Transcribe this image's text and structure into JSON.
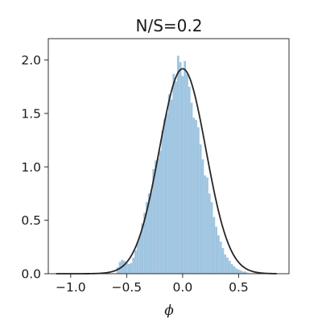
{
  "chart_data": {
    "type": "bar",
    "title": "N/S=0.2",
    "xlabel": "ϕ",
    "ylabel": "",
    "xlim": [
      -1.2,
      0.95
    ],
    "ylim": [
      0,
      2.2
    ],
    "x_ticks": [
      -1.0,
      -0.5,
      0.0,
      0.5
    ],
    "x_tick_labels": [
      "−1.0",
      "−0.5",
      "0.0",
      "0.5"
    ],
    "y_ticks": [
      0.0,
      0.5,
      1.0,
      1.5,
      2.0
    ],
    "y_tick_labels": [
      "0.0",
      "0.5",
      "1.0",
      "1.5",
      "2.0"
    ],
    "grid": false,
    "histogram": {
      "bin_width": 0.02,
      "color": "#9fc5e1",
      "bins": [
        {
          "x": -0.58,
          "y": 0.06
        },
        {
          "x": -0.56,
          "y": 0.11
        },
        {
          "x": -0.54,
          "y": 0.13
        },
        {
          "x": -0.52,
          "y": 0.12
        },
        {
          "x": -0.5,
          "y": 0.1
        },
        {
          "x": -0.48,
          "y": 0.09
        },
        {
          "x": -0.46,
          "y": 0.1
        },
        {
          "x": -0.44,
          "y": 0.15
        },
        {
          "x": -0.42,
          "y": 0.22
        },
        {
          "x": -0.4,
          "y": 0.3
        },
        {
          "x": -0.38,
          "y": 0.36
        },
        {
          "x": -0.36,
          "y": 0.47
        },
        {
          "x": -0.34,
          "y": 0.57
        },
        {
          "x": -0.32,
          "y": 0.67
        },
        {
          "x": -0.3,
          "y": 0.75
        },
        {
          "x": -0.28,
          "y": 0.77
        },
        {
          "x": -0.26,
          "y": 0.98
        },
        {
          "x": -0.24,
          "y": 1.06
        },
        {
          "x": -0.22,
          "y": 1.08
        },
        {
          "x": -0.2,
          "y": 1.15
        },
        {
          "x": -0.18,
          "y": 1.34
        },
        {
          "x": -0.16,
          "y": 1.45
        },
        {
          "x": -0.14,
          "y": 1.5
        },
        {
          "x": -0.12,
          "y": 1.68
        },
        {
          "x": -0.1,
          "y": 1.63
        },
        {
          "x": -0.08,
          "y": 1.87
        },
        {
          "x": -0.06,
          "y": 1.8
        },
        {
          "x": -0.04,
          "y": 2.04
        },
        {
          "x": -0.02,
          "y": 1.98
        },
        {
          "x": 0.0,
          "y": 1.85
        },
        {
          "x": 0.02,
          "y": 1.99
        },
        {
          "x": 0.04,
          "y": 1.87
        },
        {
          "x": 0.06,
          "y": 1.75
        },
        {
          "x": 0.08,
          "y": 1.6
        },
        {
          "x": 0.1,
          "y": 1.46
        },
        {
          "x": 0.12,
          "y": 1.44
        },
        {
          "x": 0.14,
          "y": 1.37
        },
        {
          "x": 0.16,
          "y": 1.21
        },
        {
          "x": 0.18,
          "y": 1.07
        },
        {
          "x": 0.2,
          "y": 0.92
        },
        {
          "x": 0.22,
          "y": 0.9
        },
        {
          "x": 0.24,
          "y": 0.75
        },
        {
          "x": 0.26,
          "y": 0.67
        },
        {
          "x": 0.28,
          "y": 0.53
        },
        {
          "x": 0.3,
          "y": 0.44
        },
        {
          "x": 0.32,
          "y": 0.36
        },
        {
          "x": 0.34,
          "y": 0.3
        },
        {
          "x": 0.36,
          "y": 0.24
        },
        {
          "x": 0.38,
          "y": 0.18
        },
        {
          "x": 0.4,
          "y": 0.15
        },
        {
          "x": 0.42,
          "y": 0.12
        },
        {
          "x": 0.44,
          "y": 0.09
        },
        {
          "x": 0.46,
          "y": 0.07
        },
        {
          "x": 0.48,
          "y": 0.05
        },
        {
          "x": 0.5,
          "y": 0.04
        },
        {
          "x": 0.52,
          "y": 0.03
        },
        {
          "x": 0.54,
          "y": 0.02
        },
        {
          "x": 0.56,
          "y": 0.02
        },
        {
          "x": 0.58,
          "y": 0.01
        }
      ]
    },
    "fit_curve": {
      "type": "gaussian",
      "mean": 0.0,
      "std": 0.208,
      "x_range": [
        -1.13,
        0.84
      ],
      "color": "#262626"
    }
  }
}
